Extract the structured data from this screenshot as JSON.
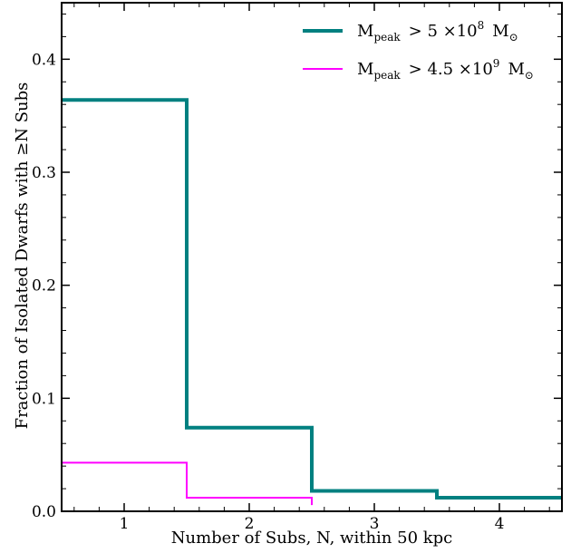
{
  "chart_data": {
    "type": "line",
    "step": "mid",
    "xlabel": "Number of Subs, N, within 50 kpc",
    "ylabel": "Fraction of Isolated Dwarfs with ≥N Subs",
    "xlim": [
      0.5,
      4.5
    ],
    "ylim": [
      0.0,
      0.45
    ],
    "xticks": [
      1,
      2,
      3,
      4
    ],
    "xtick_labels": [
      "1",
      "2",
      "3",
      "4"
    ],
    "yticks": [
      0.0,
      0.1,
      0.2,
      0.3,
      0.4
    ],
    "ytick_labels": [
      "0.0",
      "0.1",
      "0.2",
      "0.3",
      "0.4"
    ],
    "legend_position": "top-right",
    "grid": false,
    "series": [
      {
        "name": "M_peak > 5 ×10^8 M_⊙",
        "label_parts": {
          "main": "M",
          "sub": "peak",
          "rel": "> 5 ×10",
          "exp": "8",
          "unit": "M",
          "unit_sub": "⊙"
        },
        "color": "#008080",
        "x": [
          1,
          2,
          3,
          4
        ],
        "values": [
          0.364,
          0.074,
          0.018,
          0.012
        ]
      },
      {
        "name": "M_peak > 4.5 ×10^9 M_⊙",
        "label_parts": {
          "main": "M",
          "sub": "peak",
          "rel": "> 4.5 ×10",
          "exp": "9",
          "unit": "M",
          "unit_sub": "⊙"
        },
        "color": "#ff00ff",
        "x": [
          1,
          2
        ],
        "values": [
          0.043,
          0.012
        ]
      }
    ]
  }
}
